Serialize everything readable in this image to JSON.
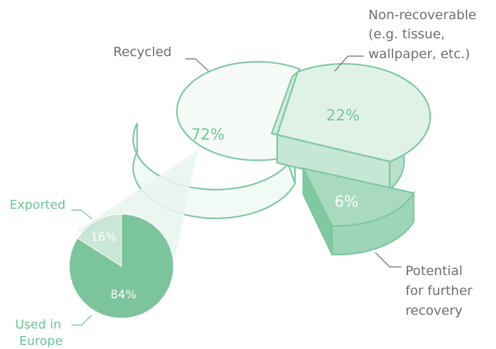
{
  "chart_data": [
    {
      "type": "pie",
      "title": "",
      "slices": [
        {
          "label": "Recycled",
          "value": 72,
          "value_label": "72%",
          "color": "#f2faf6"
        },
        {
          "label": "Non-recoverable (e.g. tissue, wallpaper, etc.)",
          "value": 22,
          "value_label": "22%",
          "color": "#deefe6"
        },
        {
          "label": "Potential for further recovery",
          "value": 6,
          "value_label": "6%",
          "color": "#a8d9bf"
        }
      ],
      "style": "3d-exploded"
    },
    {
      "type": "pie",
      "title": "",
      "breakdown_of": "Recycled",
      "slices": [
        {
          "label": "Used in Europe",
          "value": 84,
          "value_label": "84%",
          "color": "#7cc49c"
        },
        {
          "label": "Exported",
          "value": 16,
          "value_label": "16%",
          "color": "#c9e6d6"
        }
      ]
    }
  ],
  "labels": {
    "recycled": "Recycled",
    "nonrec_line1": "Non-recoverable",
    "nonrec_line2": "(e.g. tissue,",
    "nonrec_line3": "wallpaper, etc.)",
    "potential_line1": "Potential",
    "potential_line2": "for further",
    "potential_line3": "recovery",
    "exported": "Exported",
    "used_line1": "Used in",
    "used_line2": "Europe"
  },
  "colors": {
    "outline": "#7cc79f",
    "text_gray": "#6e6e6e",
    "text_green": "#6cc397"
  }
}
